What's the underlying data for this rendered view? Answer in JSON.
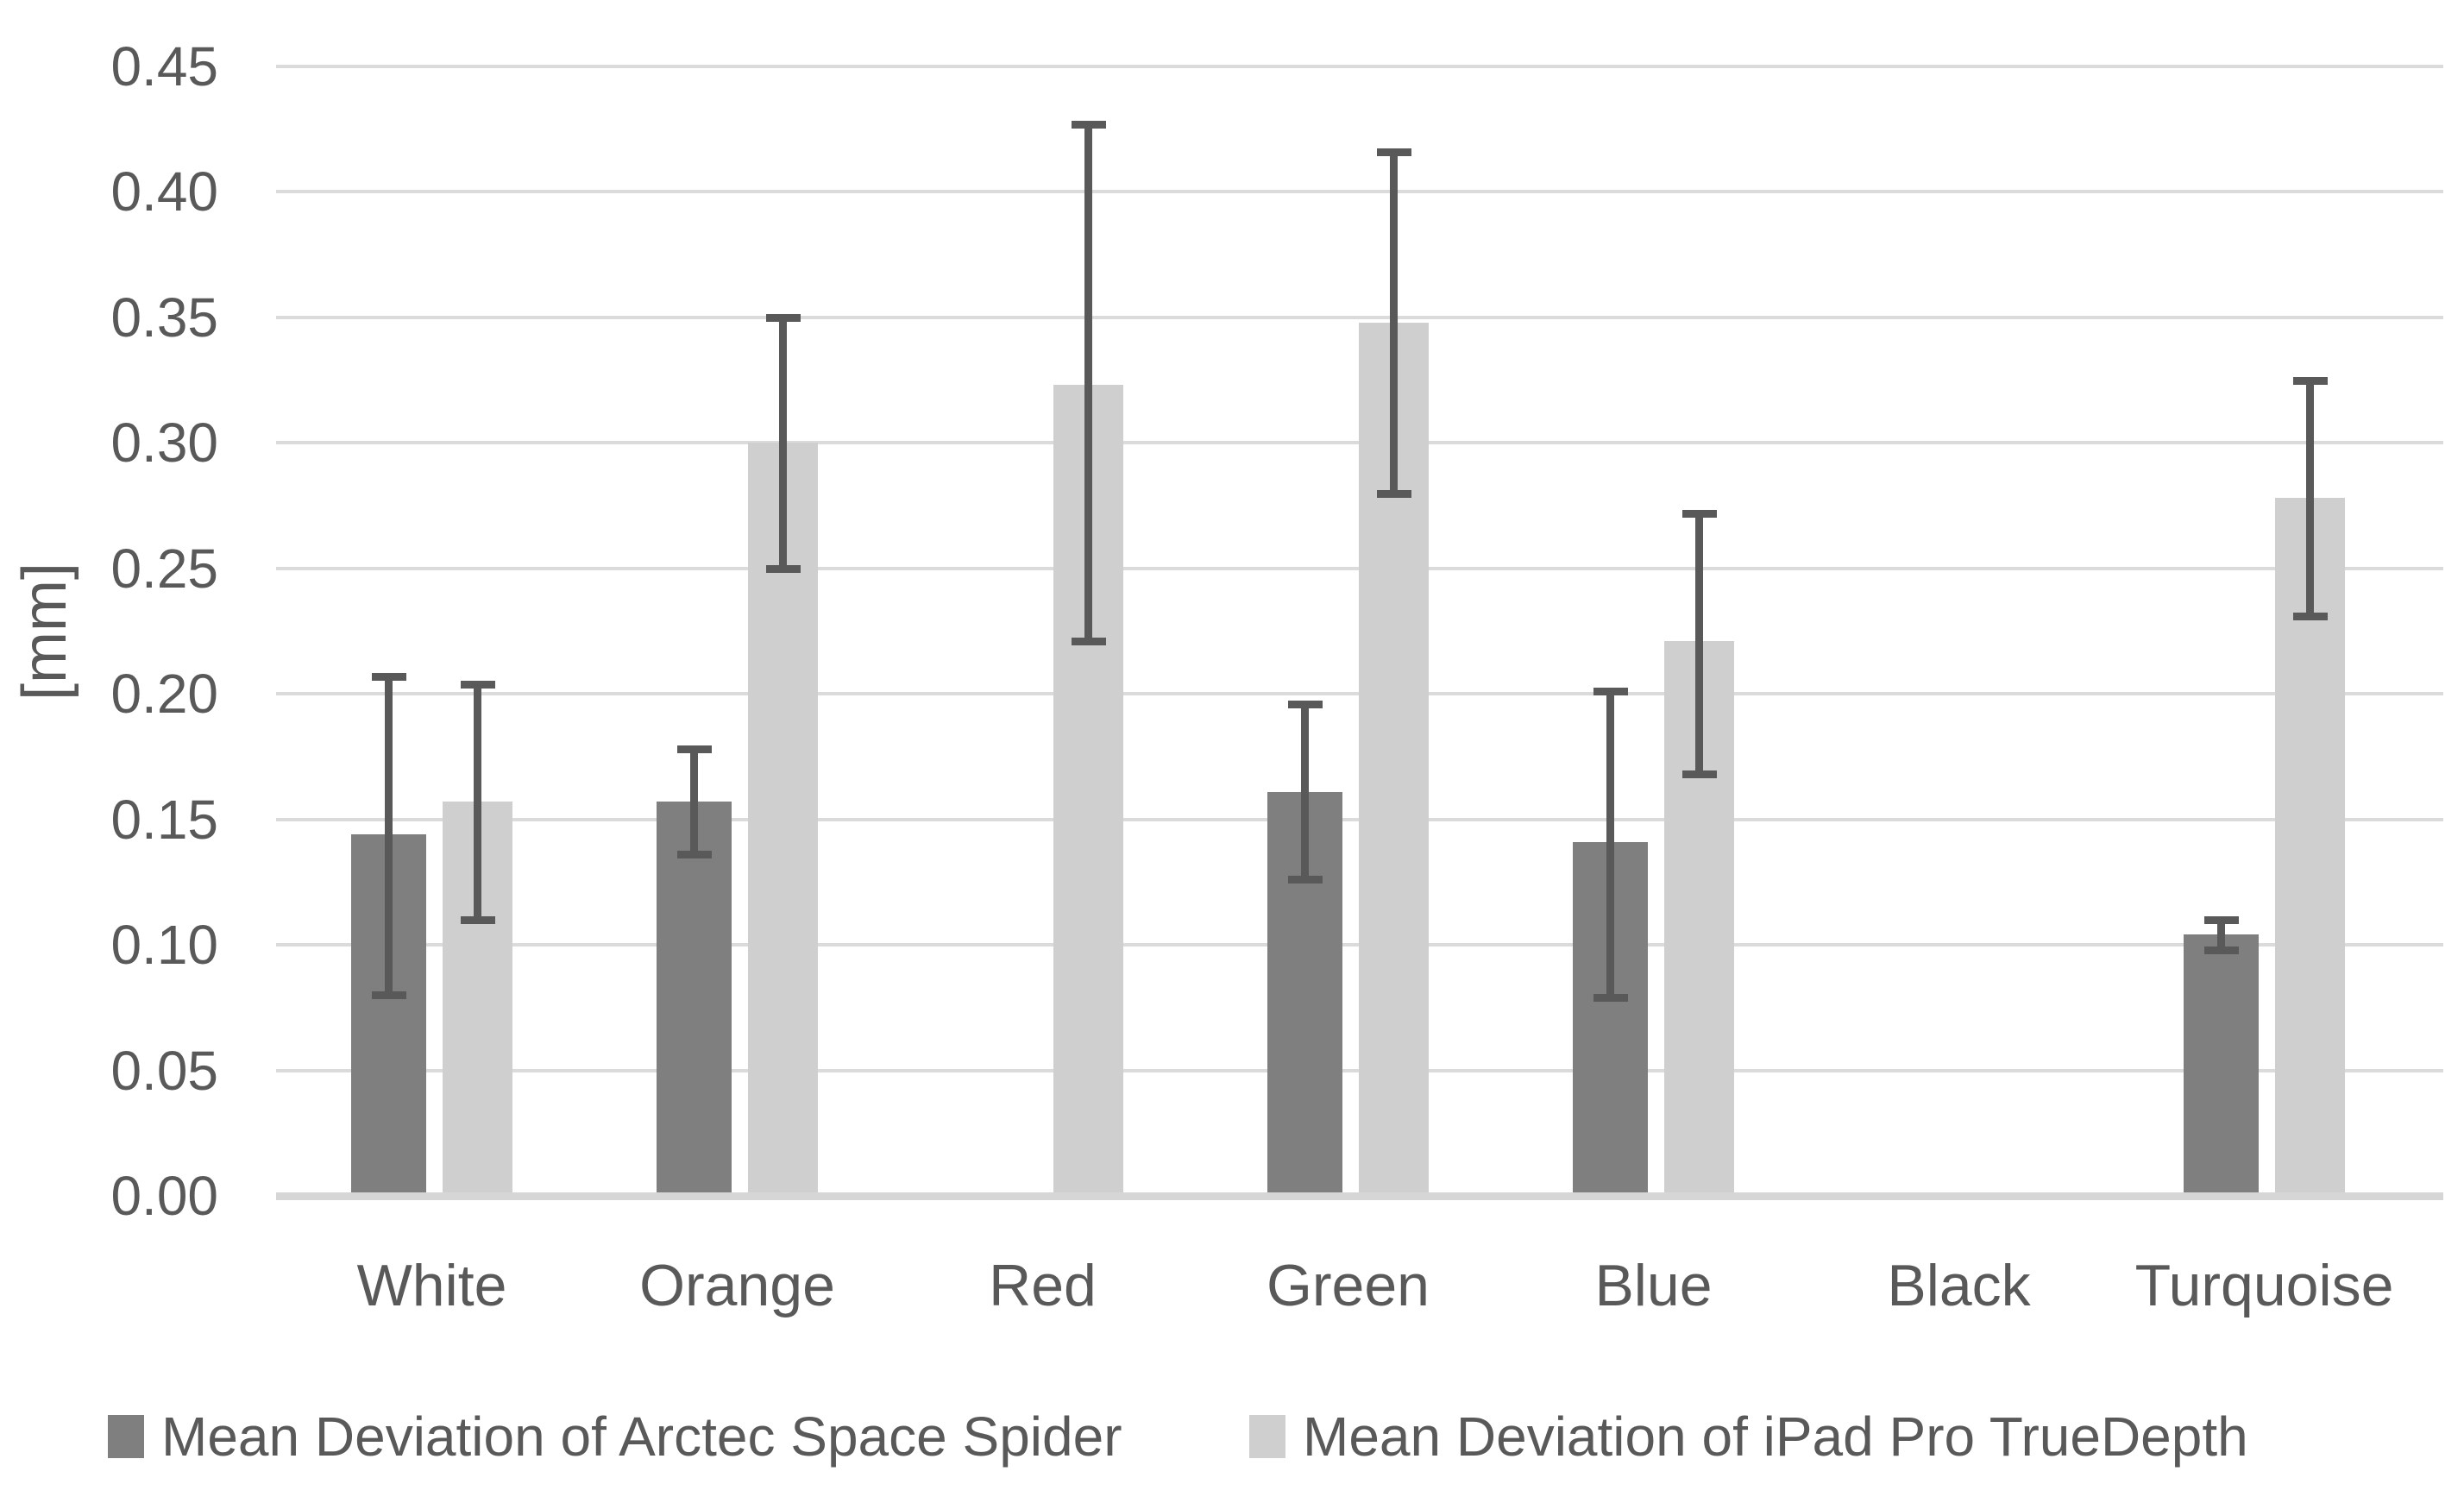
{
  "chart_data": {
    "type": "bar",
    "title": "",
    "ylabel": "[mm]",
    "xlabel": "",
    "categories": [
      "White",
      "Orange",
      "Red",
      "Green",
      "Blue",
      "Black",
      "Turquoise"
    ],
    "series": [
      {
        "name": "Mean Deviation of Arctec Space Spider",
        "color": "#7F7F7F",
        "values": [
          0.144,
          0.157,
          null,
          0.161,
          0.141,
          null,
          0.104
        ],
        "error_low": [
          0.08,
          0.136,
          null,
          0.126,
          0.079,
          null,
          0.098
        ],
        "error_high": [
          0.207,
          0.178,
          null,
          0.196,
          0.201,
          null,
          0.11
        ]
      },
      {
        "name": "Mean Deviation of iPad Pro TrueDepth",
        "color": "#D0CFCF",
        "values": [
          0.157,
          0.3,
          0.323,
          0.348,
          0.221,
          null,
          0.278
        ],
        "error_low": [
          0.11,
          0.25,
          0.221,
          0.28,
          0.168,
          null,
          0.231
        ],
        "error_high": [
          0.204,
          0.35,
          0.427,
          0.416,
          0.272,
          null,
          0.325
        ]
      }
    ],
    "ylim": [
      0.0,
      0.45
    ],
    "y_tick_step": 0.05,
    "y_ticks": [
      "0.45",
      "0.40",
      "0.35",
      "0.30",
      "0.25",
      "0.20",
      "0.15",
      "0.10",
      "0.05",
      "0.00"
    ],
    "grid": true,
    "legend_position": "bottom",
    "error_bars": true,
    "colors": {
      "gridline": "#DBDBDB",
      "axis_line": "#D6D6D6",
      "error_bar": "#595959",
      "text": "#595959",
      "background": "#FFFFFF"
    }
  }
}
